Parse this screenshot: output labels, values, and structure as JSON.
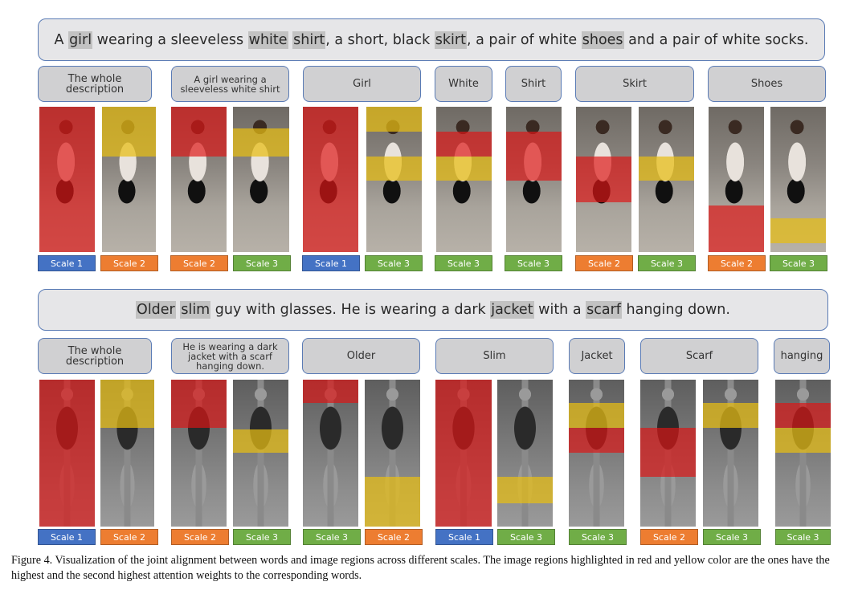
{
  "top": {
    "sentence": [
      {
        "text": "A ",
        "hl": false
      },
      {
        "text": "girl",
        "hl": true
      },
      {
        "text": " wearing a sleeveless ",
        "hl": false
      },
      {
        "text": "white",
        "hl": true
      },
      {
        "text": " ",
        "hl": false
      },
      {
        "text": "shirt",
        "hl": true
      },
      {
        "text": ", a short, black ",
        "hl": false
      },
      {
        "text": "skirt",
        "hl": true
      },
      {
        "text": ", a pair of white ",
        "hl": false
      },
      {
        "text": "shoes",
        "hl": true
      },
      {
        "text": " and a pair of white socks.",
        "hl": false
      }
    ],
    "labels": [
      "The whole description",
      "A girl wearing a sleeveless white shirt",
      "Girl",
      "White",
      "Shirt",
      "Skirt",
      "Shoes"
    ],
    "scales": [
      "Scale 1",
      "Scale 2",
      "Scale 2",
      "Scale 3",
      "Scale 1",
      "Scale 3",
      "Scale 3",
      "Scale 3",
      "Scale 2",
      "Scale 3",
      "Scale 2",
      "Scale 3"
    ]
  },
  "bottom": {
    "sentence": [
      {
        "text": "Older",
        "hl": true
      },
      {
        "text": " ",
        "hl": false
      },
      {
        "text": "slim",
        "hl": true
      },
      {
        "text": " guy with glasses. He is wearing a dark ",
        "hl": false
      },
      {
        "text": "jacket",
        "hl": true
      },
      {
        "text": " with a ",
        "hl": false
      },
      {
        "text": "scarf",
        "hl": true
      },
      {
        "text": " hanging down.",
        "hl": false
      }
    ],
    "labels": [
      "The whole description",
      "He is wearing a dark jacket with a scarf hanging down.",
      "Older",
      "Slim",
      "Jacket",
      "Scarf",
      "hanging"
    ],
    "scales": [
      "Scale 1",
      "Scale 2",
      "Scale 2",
      "Scale 3",
      "Scale 3",
      "Scale 2",
      "Scale 1",
      "Scale 3",
      "Scale 3",
      "Scale 2",
      "Scale 3",
      "Scale 3"
    ]
  },
  "colors": {
    "red": "#de1414",
    "yellow": "#e8be14",
    "scale1": "#4472c4",
    "scale2": "#ed7d31",
    "scale3": "#70ad47"
  },
  "caption": "Figure 4. Visualization of the joint alignment between words and image regions across different scales. The image regions highlighted in red and yellow color are the ones have the highest and the second highest attention weights to the corresponding words."
}
